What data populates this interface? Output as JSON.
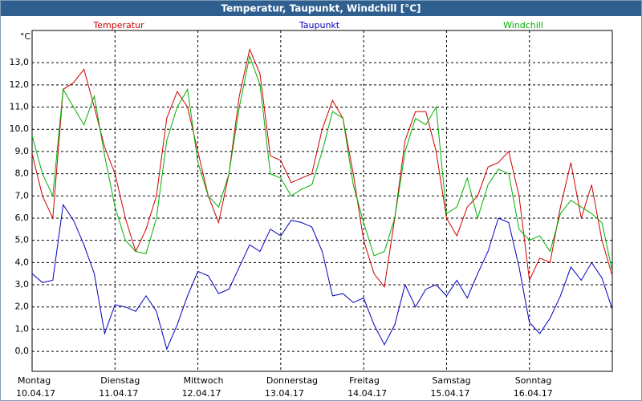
{
  "chart_data": {
    "type": "line",
    "title": "Temperatur, Taupunkt, Windchill [°C]",
    "y_unit": "°C",
    "x": [
      0,
      3,
      6,
      9,
      12,
      15,
      18,
      21,
      24,
      27,
      30,
      33,
      36,
      39,
      42,
      45,
      48,
      51,
      54,
      57,
      60,
      63,
      66,
      69,
      72,
      75,
      78,
      81,
      84,
      87,
      90,
      93,
      96,
      99,
      102,
      105,
      108,
      111,
      114,
      117,
      120,
      123,
      126,
      129,
      132,
      135,
      138,
      141,
      144,
      147,
      150,
      153,
      156,
      159,
      162,
      165,
      168
    ],
    "xlim": [
      0,
      168
    ],
    "xticks": [
      {
        "value": 0,
        "label": "Montag"
      },
      {
        "value": 24,
        "label": "Dienstag"
      },
      {
        "value": 48,
        "label": "Mittwoch"
      },
      {
        "value": 72,
        "label": "Donnerstag"
      },
      {
        "value": 96,
        "label": "Freitag"
      },
      {
        "value": 120,
        "label": "Samstag"
      },
      {
        "value": 144,
        "label": "Sonntag"
      }
    ],
    "xtick_dates": [
      "10.04.17",
      "11.04.17",
      "12.04.17",
      "13.04.17",
      "14.04.17",
      "15.04.17",
      "16.04.17"
    ],
    "ylim": [
      -0.9,
      14.45
    ],
    "yticks": [
      {
        "value": 0,
        "label": "0,0"
      },
      {
        "value": 1,
        "label": "1,0"
      },
      {
        "value": 2,
        "label": "2,0"
      },
      {
        "value": 3,
        "label": "3,0"
      },
      {
        "value": 4,
        "label": "4,0"
      },
      {
        "value": 5,
        "label": "5,0"
      },
      {
        "value": 6,
        "label": "6,0"
      },
      {
        "value": 7,
        "label": "7,0"
      },
      {
        "value": 8,
        "label": "8,0"
      },
      {
        "value": 9,
        "label": "9,0"
      },
      {
        "value": 10,
        "label": "10,0"
      },
      {
        "value": 11,
        "label": "11,0"
      },
      {
        "value": 12,
        "label": "12,0"
      },
      {
        "value": 13,
        "label": "13,0"
      }
    ],
    "grid": true,
    "series": [
      {
        "name": "Temperatur",
        "color": "#d00000",
        "values": [
          8.9,
          7.0,
          6.0,
          11.8,
          12.1,
          12.7,
          11.0,
          9.2,
          8.0,
          6.0,
          4.5,
          5.5,
          7.0,
          10.5,
          11.7,
          11.0,
          9.0,
          7.0,
          5.8,
          8.0,
          11.5,
          13.6,
          12.5,
          8.8,
          8.6,
          7.6,
          7.8,
          8.0,
          10.0,
          11.3,
          10.5,
          8.0,
          5.0,
          3.5,
          2.9,
          6.0,
          9.5,
          10.8,
          10.8,
          9.0,
          6.0,
          5.2,
          6.5,
          7.0,
          8.3,
          8.5,
          9.0,
          7.0,
          3.2,
          4.2,
          4.0,
          6.5,
          8.5,
          6.0,
          7.5,
          5.0,
          3.4
        ]
      },
      {
        "name": "Taupunkt",
        "color": "#0000c0",
        "values": [
          3.5,
          3.1,
          3.2,
          6.6,
          5.9,
          4.8,
          3.5,
          0.8,
          2.1,
          2.0,
          1.8,
          2.5,
          1.8,
          0.1,
          1.2,
          2.5,
          3.6,
          3.4,
          2.6,
          2.8,
          3.8,
          4.8,
          4.5,
          5.5,
          5.2,
          5.9,
          5.8,
          5.6,
          4.5,
          2.5,
          2.6,
          2.2,
          2.4,
          1.2,
          0.3,
          1.2,
          3.0,
          2.0,
          2.8,
          3.0,
          2.5,
          3.2,
          2.4,
          3.5,
          4.5,
          6.0,
          5.8,
          3.8,
          1.3,
          0.8,
          1.5,
          2.5,
          3.8,
          3.2,
          4.0,
          3.3,
          1.9
        ]
      },
      {
        "name": "Windchill",
        "color": "#00b000",
        "values": [
          9.7,
          8.0,
          7.0,
          11.8,
          11.0,
          10.2,
          11.5,
          8.8,
          6.5,
          5.0,
          4.5,
          4.4,
          6.0,
          9.5,
          11.0,
          11.8,
          8.5,
          7.0,
          6.5,
          8.0,
          11.0,
          13.3,
          12.0,
          8.0,
          7.8,
          7.0,
          7.3,
          7.5,
          9.0,
          10.8,
          10.5,
          7.5,
          5.8,
          4.3,
          4.5,
          6.0,
          9.0,
          10.5,
          10.2,
          11.0,
          6.2,
          6.5,
          7.8,
          6.0,
          7.5,
          8.2,
          8.0,
          5.5,
          5.0,
          5.2,
          4.5,
          6.2,
          6.8,
          6.5,
          6.2,
          5.8,
          3.6
        ]
      }
    ]
  }
}
